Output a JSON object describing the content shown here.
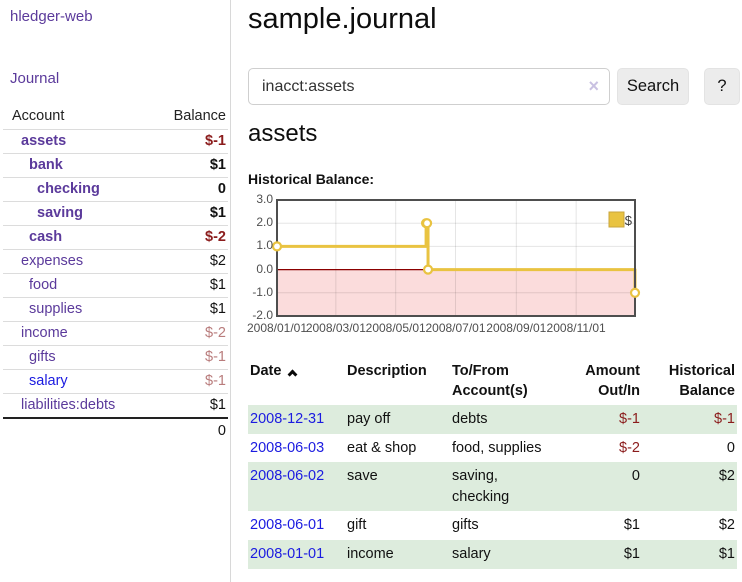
{
  "app": {
    "brand": "hledger-web",
    "nav_journal": "Journal"
  },
  "sidebar": {
    "table_headers": {
      "account": "Account",
      "balance": "Balance"
    },
    "accounts": [
      {
        "name": "assets",
        "depth": 1,
        "bold": true,
        "balance": "$-1",
        "negative": true,
        "blue": false
      },
      {
        "name": "bank",
        "depth": 2,
        "bold": true,
        "balance": "$1",
        "negative": false,
        "blue": false
      },
      {
        "name": "checking",
        "depth": 3,
        "bold": true,
        "balance": "0",
        "negative": false,
        "blue": false
      },
      {
        "name": "saving",
        "depth": 3,
        "bold": true,
        "balance": "$1",
        "negative": false,
        "blue": false
      },
      {
        "name": "cash",
        "depth": 2,
        "bold": true,
        "balance": "$-2",
        "negative": true,
        "blue": false
      },
      {
        "name": "expenses",
        "depth": 1,
        "bold": false,
        "balance": "$2",
        "negative": false,
        "blue": false
      },
      {
        "name": "food",
        "depth": 2,
        "bold": false,
        "balance": "$1",
        "negative": false,
        "blue": false
      },
      {
        "name": "supplies",
        "depth": 2,
        "bold": false,
        "balance": "$1",
        "negative": false,
        "blue": false
      },
      {
        "name": "income",
        "depth": 1,
        "bold": false,
        "balance": "$-2",
        "negative": true,
        "blue": false
      },
      {
        "name": "gifts",
        "depth": 2,
        "bold": false,
        "balance": "$-1",
        "negative": true,
        "blue": false
      },
      {
        "name": "salary",
        "depth": 2,
        "bold": false,
        "balance": "$-1",
        "negative": true,
        "blue": true
      },
      {
        "name": "liabilities:debts",
        "depth": 1,
        "bold": false,
        "balance": "$1",
        "negative": false,
        "blue": false
      }
    ],
    "total": "0"
  },
  "header": {
    "title": "sample.journal"
  },
  "search": {
    "value": "inacct:assets",
    "clear_icon": "×",
    "button": "Search",
    "help": "?"
  },
  "account_page": {
    "heading": "assets",
    "chart_label": "Historical Balance:"
  },
  "chart_data": {
    "type": "line",
    "step": true,
    "title": "Historical Balance of assets",
    "x_range": [
      "2008-01-01",
      "2008-12-31"
    ],
    "ylim": [
      -2,
      3
    ],
    "y_ticks": [
      "3.0",
      "2.0",
      "1.0",
      "0.0",
      "-1.0",
      "-2.0"
    ],
    "x_ticks": [
      "2008/01/01",
      "2008/03/01",
      "2008/05/01",
      "2008/07/01",
      "2008/09/01",
      "2008/11/01"
    ],
    "series": [
      {
        "name": "$",
        "color": "#e9c341",
        "points": [
          [
            "2008-01-01",
            1
          ],
          [
            "2008-06-01",
            2
          ],
          [
            "2008-06-02",
            2
          ],
          [
            "2008-06-03",
            0
          ],
          [
            "2008-12-31",
            -1
          ]
        ]
      }
    ],
    "legend": {
      "label": "$",
      "position": "top-right"
    },
    "grid": true,
    "negative_region_color": "#fbdcdc",
    "zero_line_color": "#8b0000",
    "border_color": "#4e4e4e"
  },
  "register": {
    "headers": [
      "Date",
      "Description",
      "To/From Account(s)",
      "Amount Out/In",
      "Historical Balance"
    ],
    "rows": [
      {
        "date": "2008-12-31",
        "description": "pay off",
        "accounts": "debts",
        "amount": "$-1",
        "amount_neg": true,
        "balance": "$-1",
        "balance_neg": true
      },
      {
        "date": "2008-06-03",
        "description": "eat & shop",
        "accounts": "food, supplies",
        "amount": "$-2",
        "amount_neg": true,
        "balance": "0",
        "balance_neg": false
      },
      {
        "date": "2008-06-02",
        "description": "save",
        "accounts": "saving, checking",
        "amount": "0",
        "amount_neg": false,
        "balance": "$2",
        "balance_neg": false
      },
      {
        "date": "2008-06-01",
        "description": "gift",
        "accounts": "gifts",
        "amount": "$1",
        "amount_neg": false,
        "balance": "$2",
        "balance_neg": false
      },
      {
        "date": "2008-01-01",
        "description": "income",
        "accounts": "salary",
        "amount": "$1",
        "amount_neg": false,
        "balance": "$1",
        "balance_neg": false
      }
    ]
  }
}
